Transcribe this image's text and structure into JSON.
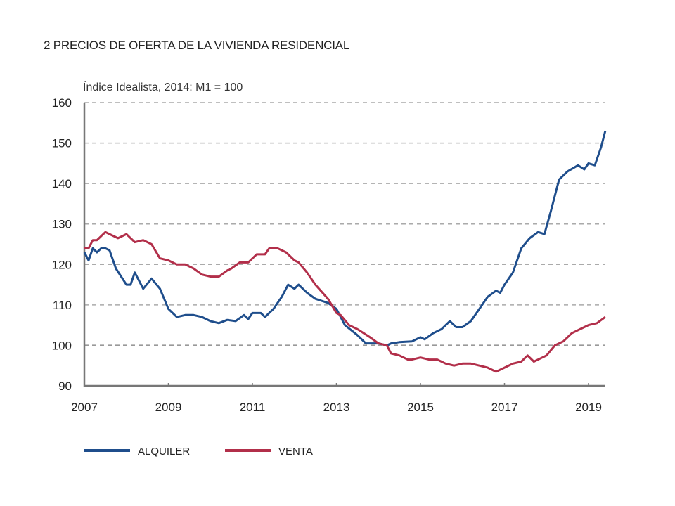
{
  "chart_data": {
    "type": "line",
    "title": "2  PRECIOS DE OFERTA DE LA VIVIENDA RESIDENCIAL",
    "subtitle": "Índice Idealista, 2014: M1 = 100",
    "xlabel": "",
    "ylabel": "",
    "xlim": [
      2007,
      2019.45
    ],
    "ylim": [
      90,
      160
    ],
    "yticks": [
      90,
      100,
      110,
      120,
      130,
      140,
      150,
      160
    ],
    "xticks": [
      2007,
      2009,
      2011,
      2013,
      2015,
      2017,
      2019
    ],
    "grid": "horizontal dashed",
    "legend_position": "bottom-left",
    "colors": {
      "ALQUILER": "#1f4e8c",
      "VENTA": "#b22f4a"
    },
    "series": [
      {
        "name": "ALQUILER",
        "x": [
          2007.0,
          2007.1,
          2007.2,
          2007.3,
          2007.4,
          2007.5,
          2007.6,
          2007.75,
          2008.0,
          2008.1,
          2008.2,
          2008.4,
          2008.6,
          2008.8,
          2009.0,
          2009.2,
          2009.4,
          2009.6,
          2009.8,
          2010.0,
          2010.2,
          2010.4,
          2010.6,
          2010.8,
          2010.9,
          2011.0,
          2011.2,
          2011.3,
          2011.5,
          2011.7,
          2011.85,
          2012.0,
          2012.1,
          2012.3,
          2012.5,
          2012.8,
          2013.0,
          2013.2,
          2013.5,
          2013.7,
          2014.0,
          2014.2,
          2014.3,
          2014.5,
          2014.8,
          2015.0,
          2015.1,
          2015.3,
          2015.5,
          2015.7,
          2015.85,
          2016.0,
          2016.2,
          2016.4,
          2016.6,
          2016.8,
          2016.9,
          2017.0,
          2017.2,
          2017.4,
          2017.6,
          2017.8,
          2017.95,
          2018.1,
          2018.3,
          2018.5,
          2018.75,
          2018.9,
          2019.0,
          2019.15,
          2019.3,
          2019.4
        ],
        "values": [
          123,
          121,
          124,
          123,
          124,
          124,
          123.5,
          119,
          115,
          115,
          118,
          114,
          116.5,
          114,
          109,
          107,
          107.5,
          107.5,
          107,
          106,
          105.5,
          106.3,
          106,
          107.5,
          106.5,
          108,
          108,
          107,
          109,
          112,
          115,
          114,
          115,
          113,
          111.5,
          110.5,
          109,
          105,
          102.5,
          100.5,
          100.5,
          100,
          100.5,
          100.8,
          101,
          102,
          101.5,
          103,
          104,
          106,
          104.5,
          104.5,
          106,
          109,
          112,
          113.5,
          113,
          115,
          118,
          124,
          126.5,
          128,
          127.5,
          133,
          141,
          143,
          144.5,
          143.5,
          145,
          144.5,
          149,
          153
        ]
      },
      {
        "name": "VENTA",
        "x": [
          2007.0,
          2007.1,
          2007.2,
          2007.3,
          2007.5,
          2007.6,
          2007.8,
          2008.0,
          2008.2,
          2008.4,
          2008.6,
          2008.8,
          2009.0,
          2009.2,
          2009.4,
          2009.6,
          2009.8,
          2010.0,
          2010.2,
          2010.4,
          2010.5,
          2010.7,
          2010.9,
          2011.1,
          2011.3,
          2011.4,
          2011.6,
          2011.8,
          2012.0,
          2012.1,
          2012.3,
          2012.5,
          2012.8,
          2013.0,
          2013.1,
          2013.3,
          2013.5,
          2013.8,
          2014.0,
          2014.2,
          2014.3,
          2014.5,
          2014.7,
          2014.8,
          2015.0,
          2015.2,
          2015.4,
          2015.6,
          2015.8,
          2016.0,
          2016.2,
          2016.4,
          2016.6,
          2016.8,
          2017.0,
          2017.2,
          2017.4,
          2017.55,
          2017.7,
          2017.9,
          2018.0,
          2018.2,
          2018.4,
          2018.6,
          2018.8,
          2019.0,
          2019.2,
          2019.4
        ],
        "values": [
          124,
          124,
          126,
          126,
          128,
          127.5,
          126.5,
          127.5,
          125.5,
          126,
          125,
          121.5,
          121,
          120,
          120,
          119,
          117.5,
          117,
          117,
          118.5,
          119,
          120.5,
          120.5,
          122.5,
          122.5,
          124,
          124,
          123,
          121,
          120.5,
          118,
          115,
          111.5,
          108,
          107.5,
          105,
          104,
          102,
          100.5,
          100,
          98,
          97.5,
          96.5,
          96.5,
          97,
          96.5,
          96.5,
          95.5,
          95,
          95.5,
          95.5,
          95,
          94.5,
          93.5,
          94.5,
          95.5,
          96,
          97.5,
          96,
          97,
          97.5,
          100,
          101,
          103,
          104,
          105,
          105.5,
          107
        ]
      }
    ]
  }
}
